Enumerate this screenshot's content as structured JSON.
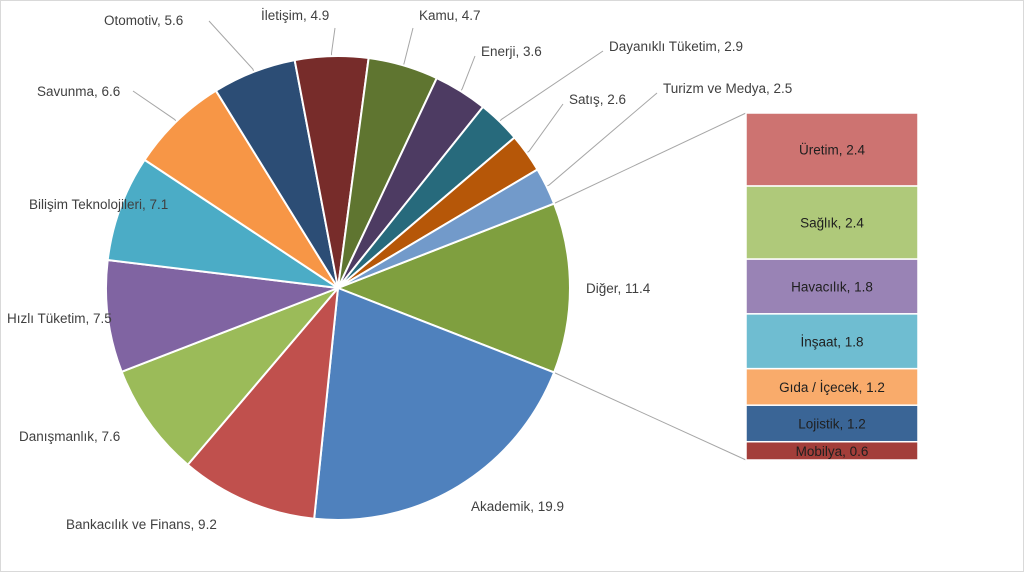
{
  "chart_data": {
    "type": "bar-of-pie",
    "title": "",
    "pie": {
      "slices": [
        {
          "label": "Diğer",
          "value": 11.4,
          "color": "#7f9f3f"
        },
        {
          "label": "Akademik",
          "value": 19.9,
          "color": "#4f81bd"
        },
        {
          "label": "Bankacılık ve Finans",
          "value": 9.2,
          "color": "#c0504d"
        },
        {
          "label": "Danışmanlık",
          "value": 7.6,
          "color": "#9bbb59"
        },
        {
          "label": "Hızlı Tüketim",
          "value": 7.5,
          "color": "#8064a2"
        },
        {
          "label": "Bilişim Teknolojileri",
          "value": 7.1,
          "color": "#4bacc6"
        },
        {
          "label": "Savunma",
          "value": 6.6,
          "color": "#f79646"
        },
        {
          "label": "Otomotiv",
          "value": 5.6,
          "color": "#2c4d75"
        },
        {
          "label": "İletişim",
          "value": 4.9,
          "color": "#772c2a"
        },
        {
          "label": "Kamu",
          "value": 4.7,
          "color": "#5f7530"
        },
        {
          "label": "Enerji",
          "value": 3.6,
          "color": "#4d3b62"
        },
        {
          "label": "Dayanıklı Tüketim",
          "value": 2.9,
          "color": "#276a7c"
        },
        {
          "label": "Satış",
          "value": 2.6,
          "color": "#b65708"
        },
        {
          "label": "Turizm ve Medya",
          "value": 2.5,
          "color": "#729aca"
        }
      ]
    },
    "bar": {
      "parent": "Diğer",
      "segments": [
        {
          "label": "Üretim",
          "value": 2.4,
          "color": "#cd7371"
        },
        {
          "label": "Sağlık",
          "value": 2.4,
          "color": "#afc97a"
        },
        {
          "label": "Havacılık",
          "value": 1.8,
          "color": "#9983b5"
        },
        {
          "label": "İnşaat",
          "value": 1.8,
          "color": "#6fbdd1"
        },
        {
          "label": "Gıda / İçecek",
          "value": 1.2,
          "color": "#f9ab6b"
        },
        {
          "label": "Lojistik",
          "value": 1.2,
          "color": "#3a6596"
        },
        {
          "label": "Mobilya",
          "value": 0.6,
          "color": "#a33e3a"
        }
      ]
    },
    "label_format": "{label}, {value}"
  }
}
